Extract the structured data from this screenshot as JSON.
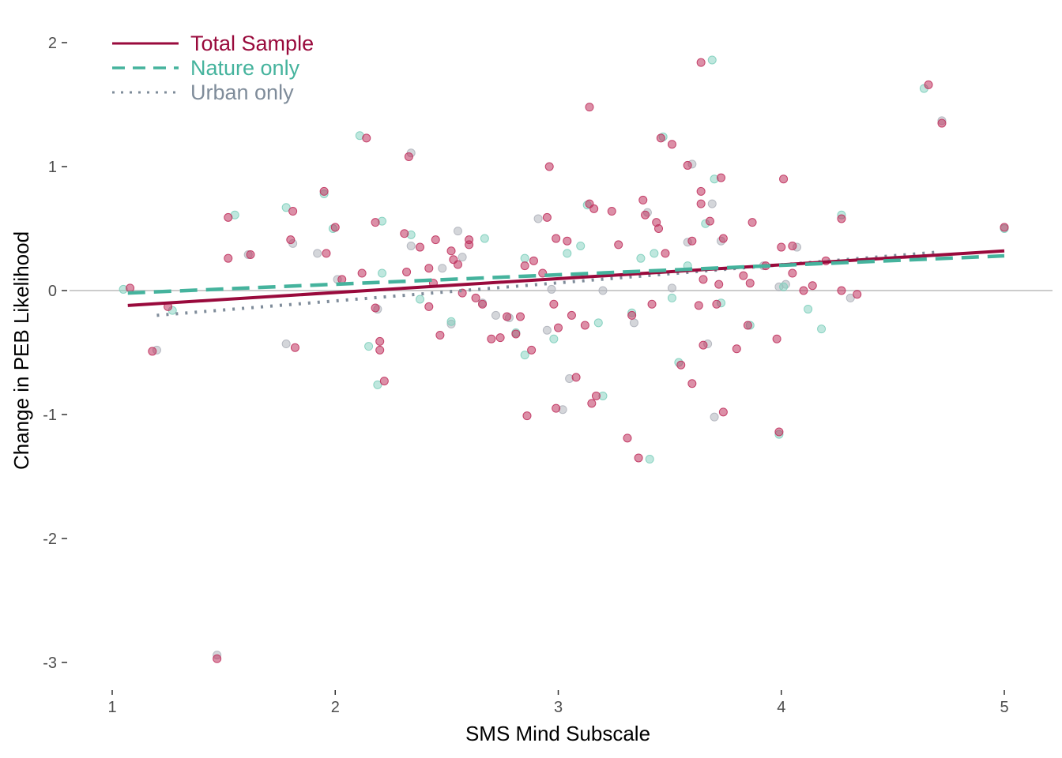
{
  "chart_data": {
    "type": "scatter",
    "xlabel": "SMS Mind Subscale",
    "ylabel": "Change in PEB Likelihood",
    "xlim": [
      0.9,
      5.15
    ],
    "ylim": [
      -3.2,
      2.1
    ],
    "x_ticks": [
      1,
      2,
      3,
      4,
      5
    ],
    "y_ticks": [
      2,
      1,
      0,
      -1,
      -2,
      -3
    ],
    "x_tick_labels": [
      "1",
      "2",
      "3",
      "4",
      "5"
    ],
    "y_tick_labels": [
      "2",
      "1",
      "0",
      "-1",
      "-2",
      "-3"
    ],
    "reference_line_y": 0,
    "grid": false,
    "legend_position": "top-left",
    "colors": {
      "total": "#990a3c",
      "nature": "#45b39d",
      "urban": "#7f8c9a",
      "reference": "#cccccc",
      "point_total": "#c0335f",
      "point_nature": "#7fcfbd",
      "point_urban": "#b0b4bc"
    },
    "series": [
      {
        "name": "Total Sample",
        "style": "solid",
        "x": [
          1.07,
          5.0
        ],
        "y": [
          -0.12,
          0.32
        ],
        "points": [
          [
            1.08,
            0.02
          ],
          [
            1.18,
            -0.49
          ],
          [
            1.25,
            -0.13
          ],
          [
            1.47,
            -2.97
          ],
          [
            1.52,
            0.59
          ],
          [
            1.52,
            0.26
          ],
          [
            1.62,
            0.29
          ],
          [
            1.8,
            0.41
          ],
          [
            1.81,
            0.64
          ],
          [
            1.82,
            -0.46
          ],
          [
            1.95,
            0.8
          ],
          [
            1.96,
            0.3
          ],
          [
            2.0,
            0.51
          ],
          [
            2.03,
            0.09
          ],
          [
            2.14,
            1.23
          ],
          [
            2.12,
            0.14
          ],
          [
            2.18,
            0.55
          ],
          [
            2.18,
            -0.14
          ],
          [
            2.2,
            -0.41
          ],
          [
            2.2,
            -0.48
          ],
          [
            2.22,
            -0.73
          ],
          [
            2.31,
            0.46
          ],
          [
            2.32,
            0.15
          ],
          [
            2.33,
            1.08
          ],
          [
            2.38,
            0.35
          ],
          [
            2.42,
            -0.13
          ],
          [
            2.42,
            0.18
          ],
          [
            2.44,
            0.06
          ],
          [
            2.45,
            0.41
          ],
          [
            2.47,
            -0.36
          ],
          [
            2.52,
            0.32
          ],
          [
            2.53,
            0.25
          ],
          [
            2.55,
            0.21
          ],
          [
            2.57,
            -0.02
          ],
          [
            2.6,
            0.41
          ],
          [
            2.6,
            0.37
          ],
          [
            2.63,
            -0.06
          ],
          [
            2.66,
            -0.11
          ],
          [
            2.7,
            -0.39
          ],
          [
            2.74,
            -0.38
          ],
          [
            2.77,
            -0.21
          ],
          [
            2.81,
            -0.35
          ],
          [
            2.83,
            -0.21
          ],
          [
            2.85,
            0.2
          ],
          [
            2.86,
            -1.01
          ],
          [
            2.88,
            -0.48
          ],
          [
            2.89,
            0.24
          ],
          [
            2.93,
            0.14
          ],
          [
            2.95,
            0.59
          ],
          [
            2.96,
            1.0
          ],
          [
            2.98,
            -0.11
          ],
          [
            2.99,
            0.42
          ],
          [
            3.0,
            -0.3
          ],
          [
            2.99,
            -0.95
          ],
          [
            3.04,
            0.4
          ],
          [
            3.06,
            -0.2
          ],
          [
            3.08,
            -0.7
          ],
          [
            3.12,
            -0.28
          ],
          [
            3.14,
            1.48
          ],
          [
            3.14,
            0.7
          ],
          [
            3.16,
            0.66
          ],
          [
            3.17,
            -0.85
          ],
          [
            3.15,
            -0.91
          ],
          [
            3.24,
            0.64
          ],
          [
            3.27,
            0.37
          ],
          [
            3.31,
            -1.19
          ],
          [
            3.33,
            -0.2
          ],
          [
            3.36,
            -1.35
          ],
          [
            3.38,
            0.73
          ],
          [
            3.39,
            0.61
          ],
          [
            3.42,
            -0.11
          ],
          [
            3.44,
            0.55
          ],
          [
            3.45,
            0.5
          ],
          [
            3.46,
            1.23
          ],
          [
            3.48,
            0.3
          ],
          [
            3.51,
            1.18
          ],
          [
            3.55,
            -0.6
          ],
          [
            3.58,
            1.01
          ],
          [
            3.6,
            -0.75
          ],
          [
            3.6,
            0.4
          ],
          [
            3.63,
            -0.12
          ],
          [
            3.64,
            1.84
          ],
          [
            3.64,
            0.8
          ],
          [
            3.64,
            0.7
          ],
          [
            3.65,
            -0.44
          ],
          [
            3.65,
            0.09
          ],
          [
            3.68,
            0.56
          ],
          [
            3.71,
            -0.11
          ],
          [
            3.72,
            0.05
          ],
          [
            3.73,
            0.91
          ],
          [
            3.74,
            0.42
          ],
          [
            3.74,
            -0.98
          ],
          [
            3.8,
            -0.47
          ],
          [
            3.83,
            0.12
          ],
          [
            3.85,
            -0.28
          ],
          [
            3.86,
            0.06
          ],
          [
            3.87,
            0.55
          ],
          [
            3.93,
            0.2
          ],
          [
            3.98,
            -0.39
          ],
          [
            3.99,
            -1.14
          ],
          [
            4.01,
            0.9
          ],
          [
            4.0,
            0.35
          ],
          [
            4.05,
            0.36
          ],
          [
            4.05,
            0.14
          ],
          [
            4.1,
            0.0
          ],
          [
            4.14,
            0.04
          ],
          [
            4.2,
            0.24
          ],
          [
            4.27,
            0.58
          ],
          [
            4.27,
            0.0
          ],
          [
            4.34,
            -0.03
          ],
          [
            4.66,
            1.66
          ],
          [
            4.72,
            1.35
          ],
          [
            5.0,
            0.51
          ]
        ]
      },
      {
        "name": "Nature only",
        "style": "dashed",
        "x": [
          1.07,
          5.0
        ],
        "y": [
          -0.02,
          0.28
        ],
        "points": [
          [
            1.05,
            0.01
          ],
          [
            1.27,
            -0.16
          ],
          [
            1.55,
            0.61
          ],
          [
            1.78,
            0.67
          ],
          [
            1.95,
            0.78
          ],
          [
            1.99,
            0.5
          ],
          [
            2.11,
            1.25
          ],
          [
            2.15,
            -0.45
          ],
          [
            2.19,
            -0.76
          ],
          [
            2.21,
            0.56
          ],
          [
            2.21,
            0.14
          ],
          [
            2.34,
            0.45
          ],
          [
            2.38,
            -0.07
          ],
          [
            2.52,
            -0.25
          ],
          [
            2.67,
            0.42
          ],
          [
            2.81,
            -0.34
          ],
          [
            2.85,
            -0.52
          ],
          [
            2.85,
            0.26
          ],
          [
            2.98,
            -0.39
          ],
          [
            3.04,
            0.3
          ],
          [
            3.1,
            0.36
          ],
          [
            3.13,
            0.69
          ],
          [
            3.18,
            -0.26
          ],
          [
            3.2,
            -0.85
          ],
          [
            3.33,
            -0.18
          ],
          [
            3.37,
            0.26
          ],
          [
            3.41,
            -1.36
          ],
          [
            3.43,
            0.3
          ],
          [
            3.47,
            1.24
          ],
          [
            3.51,
            -0.06
          ],
          [
            3.54,
            -0.58
          ],
          [
            3.58,
            0.2
          ],
          [
            3.66,
            0.54
          ],
          [
            3.69,
            1.86
          ],
          [
            3.7,
            0.9
          ],
          [
            3.73,
            -0.1
          ],
          [
            3.86,
            -0.28
          ],
          [
            3.99,
            -1.16
          ],
          [
            4.01,
            0.03
          ],
          [
            4.12,
            -0.15
          ],
          [
            4.27,
            0.61
          ],
          [
            4.18,
            -0.31
          ],
          [
            4.64,
            1.63
          ],
          [
            5.0,
            0.5
          ]
        ]
      },
      {
        "name": "Urban only",
        "style": "dotted",
        "x": [
          1.2,
          4.7
        ],
        "y": [
          -0.2,
          0.31
        ],
        "points": [
          [
            1.2,
            -0.48
          ],
          [
            1.47,
            -2.94
          ],
          [
            1.61,
            0.29
          ],
          [
            1.78,
            -0.43
          ],
          [
            1.81,
            0.38
          ],
          [
            1.92,
            0.3
          ],
          [
            2.01,
            0.09
          ],
          [
            2.19,
            -0.15
          ],
          [
            2.34,
            1.11
          ],
          [
            2.34,
            0.36
          ],
          [
            2.48,
            0.18
          ],
          [
            2.52,
            -0.27
          ],
          [
            2.55,
            0.48
          ],
          [
            2.57,
            0.27
          ],
          [
            2.66,
            -0.1
          ],
          [
            2.72,
            -0.2
          ],
          [
            2.78,
            -0.22
          ],
          [
            2.91,
            0.58
          ],
          [
            2.95,
            -0.32
          ],
          [
            2.97,
            0.01
          ],
          [
            3.02,
            -0.96
          ],
          [
            3.05,
            -0.71
          ],
          [
            3.2,
            0.0
          ],
          [
            3.34,
            -0.26
          ],
          [
            3.4,
            0.63
          ],
          [
            3.51,
            0.02
          ],
          [
            3.58,
            0.39
          ],
          [
            3.6,
            1.02
          ],
          [
            3.67,
            -0.43
          ],
          [
            3.69,
            0.7
          ],
          [
            3.73,
            0.4
          ],
          [
            3.7,
            -1.02
          ],
          [
            3.92,
            0.2
          ],
          [
            3.99,
            0.03
          ],
          [
            4.02,
            0.05
          ],
          [
            4.07,
            0.35
          ],
          [
            4.31,
            -0.06
          ],
          [
            4.72,
            1.37
          ]
        ]
      }
    ]
  }
}
